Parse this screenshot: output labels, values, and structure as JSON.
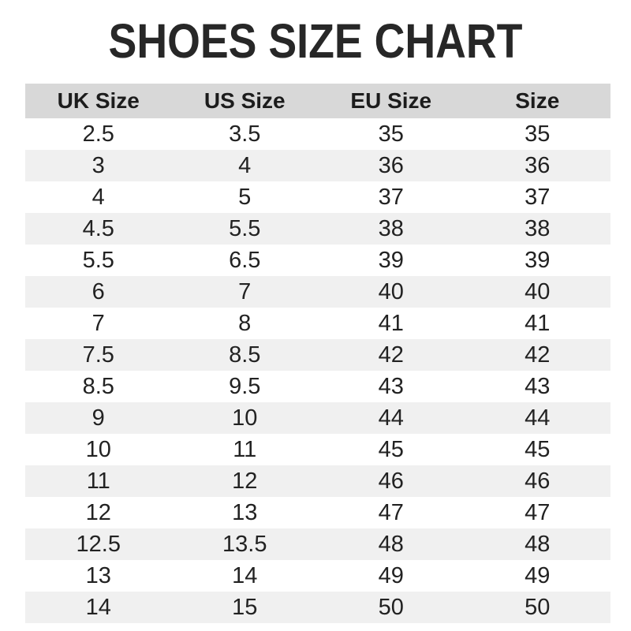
{
  "title": "SHOES SIZE CHART",
  "chart_data": {
    "type": "table",
    "title": "SHOES SIZE CHART",
    "columns": [
      "UK Size",
      "US Size",
      "EU Size",
      "Size"
    ],
    "rows": [
      [
        "2.5",
        "3.5",
        "35",
        "35"
      ],
      [
        "3",
        "4",
        "36",
        "36"
      ],
      [
        "4",
        "5",
        "37",
        "37"
      ],
      [
        "4.5",
        "5.5",
        "38",
        "38"
      ],
      [
        "5.5",
        "6.5",
        "39",
        "39"
      ],
      [
        "6",
        "7",
        "40",
        "40"
      ],
      [
        "7",
        "8",
        "41",
        "41"
      ],
      [
        "7.5",
        "8.5",
        "42",
        "42"
      ],
      [
        "8.5",
        "9.5",
        "43",
        "43"
      ],
      [
        "9",
        "10",
        "44",
        "44"
      ],
      [
        "10",
        "11",
        "45",
        "45"
      ],
      [
        "11",
        "12",
        "46",
        "46"
      ],
      [
        "12",
        "13",
        "47",
        "47"
      ],
      [
        "12.5",
        "13.5",
        "48",
        "48"
      ],
      [
        "13",
        "14",
        "49",
        "49"
      ],
      [
        "14",
        "15",
        "50",
        "50"
      ]
    ],
    "layout": {
      "zebra_striping": true,
      "stripe_rows": "even-numbered data rows (2nd, 4th, ...)"
    }
  },
  "colors": {
    "header_bg": "#d8d8d8",
    "stripe_bg": "#f0f0f0",
    "base_bg": "#ffffff",
    "title_text": "#272727",
    "cell_text": "#222222"
  }
}
